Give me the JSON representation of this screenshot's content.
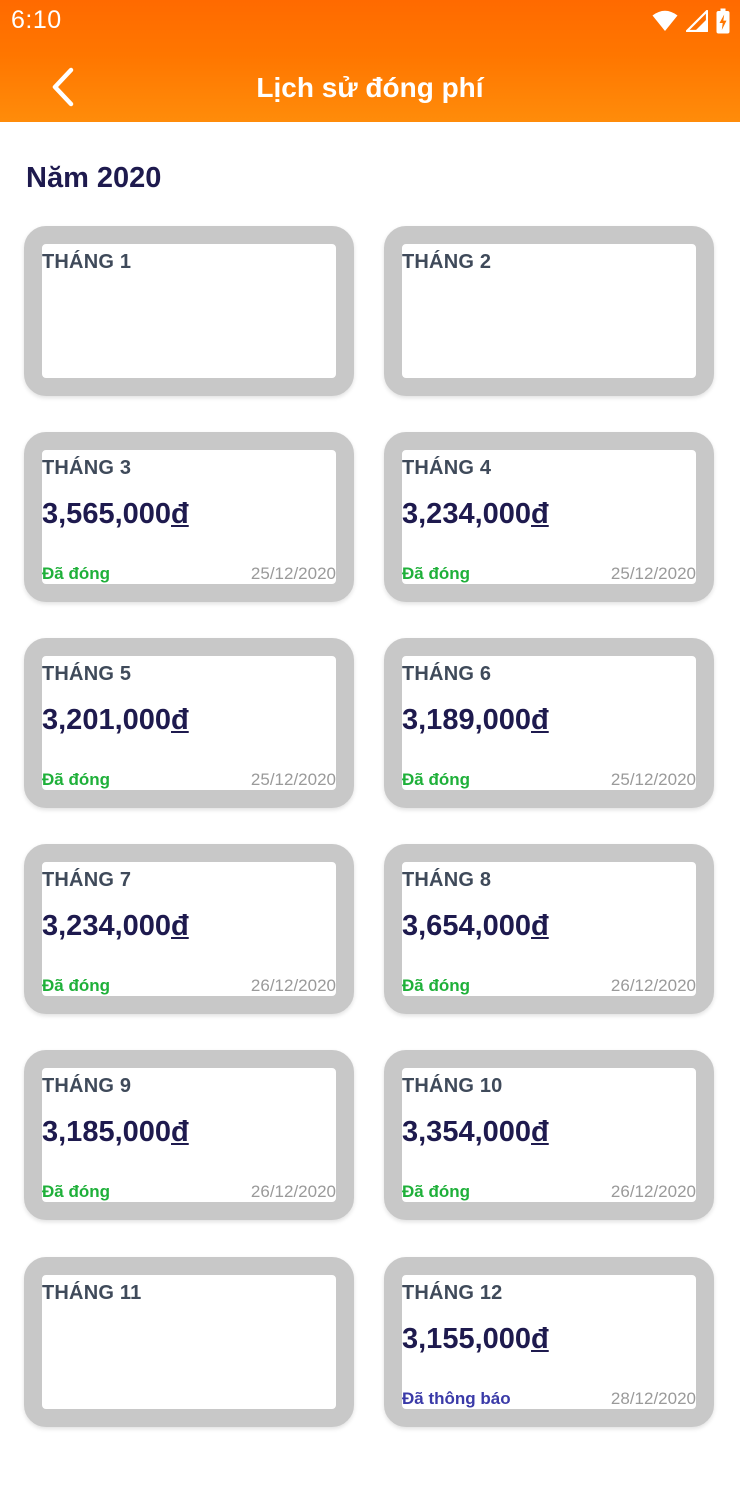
{
  "status_bar": {
    "time": "6:10",
    "icons": [
      "wifi-icon",
      "cellular-signal-icon",
      "battery-charging-icon"
    ]
  },
  "header": {
    "back_icon": "chevron-left-icon",
    "title": "Lịch sử đóng phí"
  },
  "section": {
    "year_title": "Năm 2020"
  },
  "colors": {
    "header_orange": "#ff7600",
    "paid_green": "#1fb03a",
    "notified_blue": "#3a3aa8",
    "amount_navy": "#1e1a4e",
    "card_border_gray": "#c8c8c8"
  },
  "months": [
    {
      "label": "THÁNG 1",
      "amount": "",
      "currency": "",
      "status": "",
      "status_type": "",
      "date": ""
    },
    {
      "label": "THÁNG 2",
      "amount": "",
      "currency": "",
      "status": "",
      "status_type": "",
      "date": ""
    },
    {
      "label": "THÁNG 3",
      "amount": "3,565,000",
      "currency": "đ",
      "status": "Đã đóng",
      "status_type": "paid",
      "date": "25/12/2020"
    },
    {
      "label": "THÁNG 4",
      "amount": "3,234,000",
      "currency": "đ",
      "status": "Đã đóng",
      "status_type": "paid",
      "date": "25/12/2020"
    },
    {
      "label": "THÁNG 5",
      "amount": "3,201,000",
      "currency": "đ",
      "status": "Đã đóng",
      "status_type": "paid",
      "date": "25/12/2020"
    },
    {
      "label": "THÁNG 6",
      "amount": "3,189,000",
      "currency": "đ",
      "status": "Đã đóng",
      "status_type": "paid",
      "date": "25/12/2020"
    },
    {
      "label": "THÁNG 7",
      "amount": "3,234,000",
      "currency": "đ",
      "status": "Đã đóng",
      "status_type": "paid",
      "date": "26/12/2020"
    },
    {
      "label": "THÁNG 8",
      "amount": "3,654,000",
      "currency": "đ",
      "status": "Đã đóng",
      "status_type": "paid",
      "date": "26/12/2020"
    },
    {
      "label": "THÁNG 9",
      "amount": "3,185,000",
      "currency": "đ",
      "status": "Đã đóng",
      "status_type": "paid",
      "date": "26/12/2020"
    },
    {
      "label": "THÁNG 10",
      "amount": "3,354,000",
      "currency": "đ",
      "status": "Đã đóng",
      "status_type": "paid",
      "date": "26/12/2020"
    },
    {
      "label": "THÁNG 11",
      "amount": "",
      "currency": "",
      "status": "",
      "status_type": "",
      "date": ""
    },
    {
      "label": "THÁNG 12",
      "amount": "3,155,000",
      "currency": "đ",
      "status": "Đã thông báo",
      "status_type": "notified",
      "date": "28/12/2020"
    }
  ]
}
